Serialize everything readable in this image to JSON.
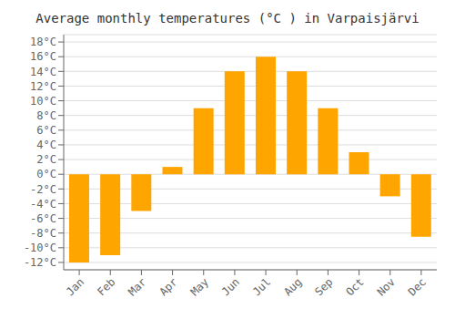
{
  "chart_data": {
    "type": "bar",
    "title": "Average monthly temperatures (°C ) in Varpaisjärvi",
    "categories": [
      "Jan",
      "Feb",
      "Mar",
      "Apr",
      "May",
      "Jun",
      "Jul",
      "Aug",
      "Sep",
      "Oct",
      "Nov",
      "Dec"
    ],
    "values": [
      -12,
      -11,
      -5,
      1,
      9,
      14,
      16,
      14,
      9,
      3,
      -3,
      -8.5
    ],
    "color": "#FFA500",
    "ylim": [
      -13,
      19
    ],
    "yticks": [
      {
        "value": -12,
        "label": "-12°C"
      },
      {
        "value": -10,
        "label": "-10°C"
      },
      {
        "value": -8,
        "label": "-8°C"
      },
      {
        "value": -6,
        "label": "-6°C"
      },
      {
        "value": -4,
        "label": "-4°C"
      },
      {
        "value": -2,
        "label": "-2°C"
      },
      {
        "value": 0,
        "label": "0°C"
      },
      {
        "value": 2,
        "label": "2°C"
      },
      {
        "value": 4,
        "label": "4°C"
      },
      {
        "value": 6,
        "label": "6°C"
      },
      {
        "value": 8,
        "label": "8°C"
      },
      {
        "value": 10,
        "label": "10°C"
      },
      {
        "value": 12,
        "label": "12°C"
      },
      {
        "value": 14,
        "label": "14°C"
      },
      {
        "value": 16,
        "label": "16°C"
      },
      {
        "value": 18,
        "label": "18°C"
      }
    ],
    "grid": true
  }
}
